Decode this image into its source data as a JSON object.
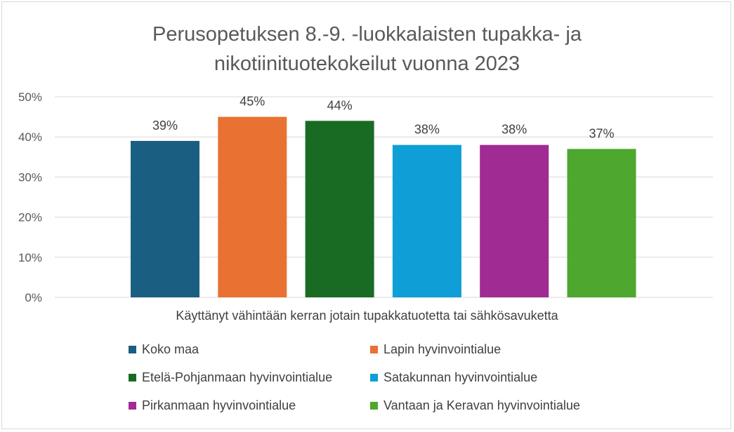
{
  "chart_data": {
    "type": "bar",
    "title_lines": [
      "Perusopetuksen 8.-9. -luokkalaisten tupakka- ja",
      "nikotiinituotekokeilut vuonna 2023"
    ],
    "category_label": "Käyttänyt vähintään kerran jotain tupakkatuotetta tai sähkösavuketta",
    "ylim": [
      0,
      50
    ],
    "y_ticks": [
      "0%",
      "10%",
      "20%",
      "30%",
      "40%",
      "50%"
    ],
    "grid": true,
    "legend_position": "bottom",
    "series": [
      {
        "name": "Koko maa",
        "value": 39,
        "label": "39%",
        "color": "#1a5e82"
      },
      {
        "name": "Lapin hyvinvointialue",
        "value": 45,
        "label": "45%",
        "color": "#e97132"
      },
      {
        "name": "Etelä-Pohjanmaan hyvinvointialue",
        "value": 44,
        "label": "44%",
        "color": "#196b24"
      },
      {
        "name": "Satakunnan hyvinvointialue",
        "value": 38,
        "label": "38%",
        "color": "#0f9ed5"
      },
      {
        "name": "Pirkanmaan hyvinvointialue",
        "value": 38,
        "label": "38%",
        "color": "#a02b93"
      },
      {
        "name": "Vantaan ja Keravan hyvinvointialue",
        "value": 37,
        "label": "37%",
        "color": "#4ea72e"
      }
    ]
  }
}
